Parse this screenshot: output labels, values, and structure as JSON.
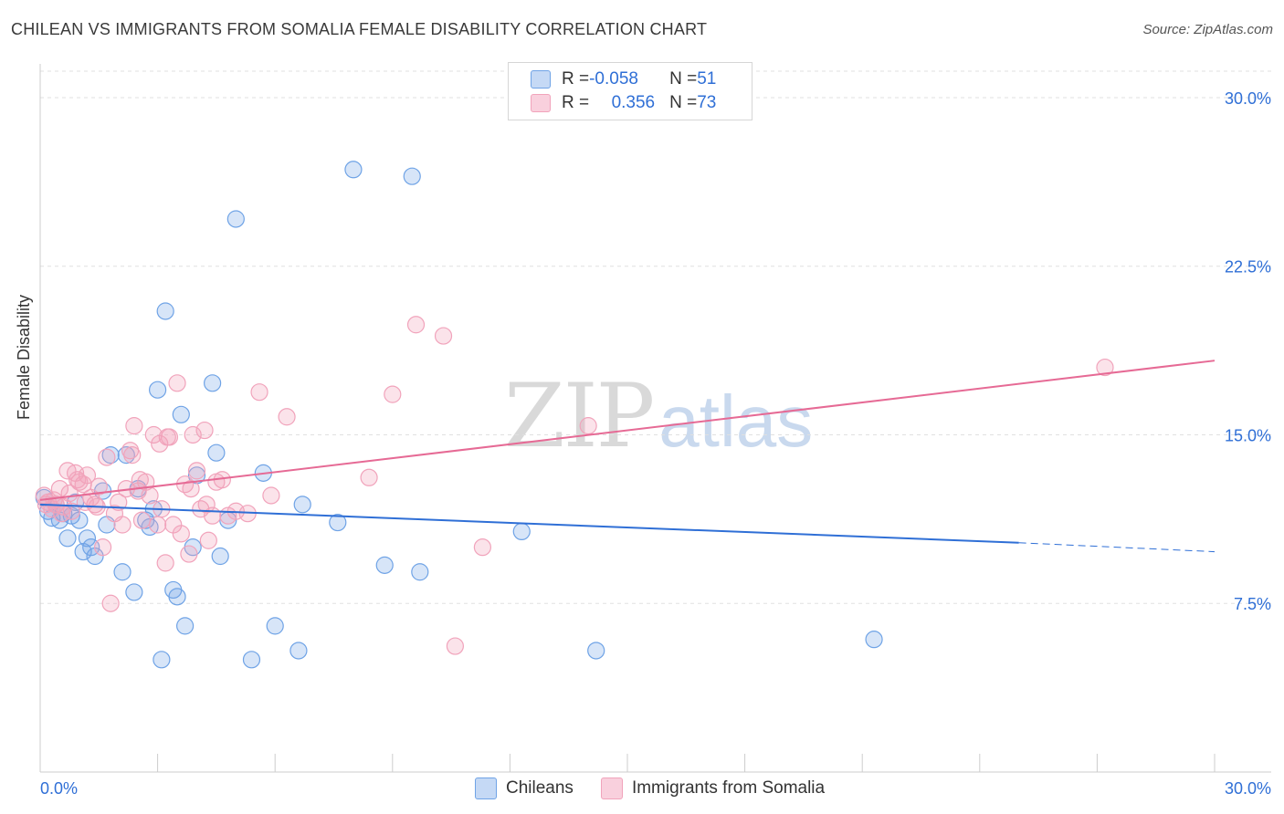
{
  "title": "CHILEAN VS IMMIGRANTS FROM SOMALIA FEMALE DISABILITY CORRELATION CHART",
  "source": "Source: ZipAtlas.com",
  "watermark": {
    "zip": "ZIP",
    "atlas": "atlas"
  },
  "colors": {
    "blue": "#6fa3e6",
    "pink": "#f1a3bb",
    "blue_line": "#2f6fd6",
    "pink_line": "#e66a95",
    "axis_label": "#2f6fd6"
  },
  "legend": {
    "rows": [
      {
        "r_label": "R = ",
        "r_value": "-0.058",
        "n_label": "N = ",
        "n_value": "51"
      },
      {
        "r_label": "R = ",
        "r_value": "0.356",
        "n_label": "N = ",
        "n_value": "73"
      }
    ]
  },
  "bottom_legend": {
    "series1": "Chileans",
    "series2": "Immigrants from Somalia"
  },
  "chart_data": {
    "type": "scatter",
    "title": "CHILEAN VS IMMIGRANTS FROM SOMALIA FEMALE DISABILITY CORRELATION CHART",
    "xlabel": "",
    "ylabel": "Female Disability",
    "xlim": [
      0,
      30
    ],
    "ylim": [
      0,
      31.5
    ],
    "x_tick_labels": [
      "0.0%",
      "30.0%"
    ],
    "y_ticks": [
      7.5,
      15.0,
      22.5,
      30.0
    ],
    "y_tick_labels": [
      "7.5%",
      "15.0%",
      "22.5%",
      "30.0%"
    ],
    "series": [
      {
        "name": "Chileans",
        "color": "#6fa3e6",
        "trend": {
          "x": [
            0,
            25
          ],
          "y": [
            11.9,
            10.2
          ],
          "dashed_to": [
            30,
            9.8
          ]
        },
        "points": [
          [
            0.1,
            12.2
          ],
          [
            0.2,
            11.6
          ],
          [
            0.3,
            11.3
          ],
          [
            0.4,
            11.9
          ],
          [
            0.5,
            11.2
          ],
          [
            0.6,
            11.5
          ],
          [
            0.7,
            10.4
          ],
          [
            0.8,
            11.4
          ],
          [
            0.9,
            12.0
          ],
          [
            1.0,
            11.2
          ],
          [
            1.1,
            9.8
          ],
          [
            1.2,
            10.4
          ],
          [
            1.3,
            10.0
          ],
          [
            1.4,
            9.6
          ],
          [
            1.6,
            12.5
          ],
          [
            1.7,
            11.0
          ],
          [
            1.8,
            14.1
          ],
          [
            2.1,
            8.9
          ],
          [
            2.2,
            14.1
          ],
          [
            2.4,
            8.0
          ],
          [
            2.5,
            12.6
          ],
          [
            2.7,
            11.2
          ],
          [
            2.8,
            10.9
          ],
          [
            2.9,
            11.7
          ],
          [
            3.0,
            17.0
          ],
          [
            3.1,
            5.0
          ],
          [
            3.2,
            20.5
          ],
          [
            3.4,
            8.1
          ],
          [
            3.5,
            7.8
          ],
          [
            3.6,
            15.9
          ],
          [
            3.7,
            6.5
          ],
          [
            3.9,
            10.0
          ],
          [
            4.0,
            13.2
          ],
          [
            4.4,
            17.3
          ],
          [
            4.5,
            14.2
          ],
          [
            4.6,
            9.6
          ],
          [
            4.8,
            11.2
          ],
          [
            5.0,
            24.6
          ],
          [
            5.4,
            5.0
          ],
          [
            5.7,
            13.3
          ],
          [
            6.0,
            6.5
          ],
          [
            6.6,
            5.4
          ],
          [
            6.7,
            11.9
          ],
          [
            7.6,
            11.1
          ],
          [
            8.0,
            26.8
          ],
          [
            8.8,
            9.2
          ],
          [
            9.5,
            26.5
          ],
          [
            9.7,
            8.9
          ],
          [
            12.3,
            10.7
          ],
          [
            14.2,
            5.4
          ],
          [
            21.3,
            5.9
          ]
        ]
      },
      {
        "name": "Immigrants from Somalia",
        "color": "#f1a3bb",
        "trend": {
          "x": [
            0,
            30
          ],
          "y": [
            12.1,
            18.3
          ]
        },
        "points": [
          [
            0.1,
            12.3
          ],
          [
            0.2,
            12.0
          ],
          [
            0.3,
            11.7
          ],
          [
            0.4,
            11.9
          ],
          [
            0.5,
            12.6
          ],
          [
            0.6,
            11.8
          ],
          [
            0.7,
            13.4
          ],
          [
            0.8,
            11.6
          ],
          [
            0.9,
            13.3
          ],
          [
            1.0,
            12.9
          ],
          [
            1.1,
            12.8
          ],
          [
            1.2,
            13.2
          ],
          [
            1.3,
            12.2
          ],
          [
            1.4,
            11.9
          ],
          [
            1.5,
            12.7
          ],
          [
            1.6,
            10.0
          ],
          [
            1.7,
            14.0
          ],
          [
            1.8,
            7.5
          ],
          [
            1.9,
            11.5
          ],
          [
            2.0,
            12.0
          ],
          [
            2.1,
            11.0
          ],
          [
            2.2,
            12.6
          ],
          [
            2.3,
            14.3
          ],
          [
            2.4,
            15.4
          ],
          [
            2.5,
            12.5
          ],
          [
            2.6,
            11.2
          ],
          [
            2.7,
            12.9
          ],
          [
            2.8,
            12.3
          ],
          [
            2.9,
            15.0
          ],
          [
            3.0,
            11.0
          ],
          [
            3.1,
            11.7
          ],
          [
            3.2,
            9.3
          ],
          [
            3.3,
            14.9
          ],
          [
            3.4,
            11.0
          ],
          [
            3.5,
            17.3
          ],
          [
            3.6,
            10.6
          ],
          [
            3.7,
            12.8
          ],
          [
            3.8,
            9.7
          ],
          [
            3.9,
            15.0
          ],
          [
            4.0,
            13.4
          ],
          [
            4.1,
            11.7
          ],
          [
            4.2,
            15.2
          ],
          [
            4.3,
            10.3
          ],
          [
            4.4,
            11.4
          ],
          [
            4.5,
            12.9
          ],
          [
            4.8,
            11.4
          ],
          [
            5.0,
            11.6
          ],
          [
            5.3,
            11.5
          ],
          [
            5.6,
            16.9
          ],
          [
            5.9,
            12.3
          ],
          [
            6.3,
            15.8
          ],
          [
            8.4,
            13.1
          ],
          [
            9.0,
            16.8
          ],
          [
            9.6,
            19.9
          ],
          [
            10.3,
            19.4
          ],
          [
            10.6,
            5.6
          ],
          [
            11.3,
            10.0
          ],
          [
            14.0,
            15.4
          ],
          [
            27.2,
            18.0
          ],
          [
            0.15,
            11.9
          ],
          [
            0.35,
            12.1
          ],
          [
            0.55,
            11.5
          ],
          [
            0.75,
            12.4
          ],
          [
            0.95,
            13.0
          ],
          [
            1.15,
            12.0
          ],
          [
            1.45,
            11.8
          ],
          [
            2.35,
            14.1
          ],
          [
            2.55,
            13.0
          ],
          [
            3.05,
            14.6
          ],
          [
            3.25,
            14.9
          ],
          [
            3.85,
            12.6
          ],
          [
            4.25,
            11.9
          ],
          [
            4.65,
            13.0
          ]
        ]
      }
    ]
  }
}
